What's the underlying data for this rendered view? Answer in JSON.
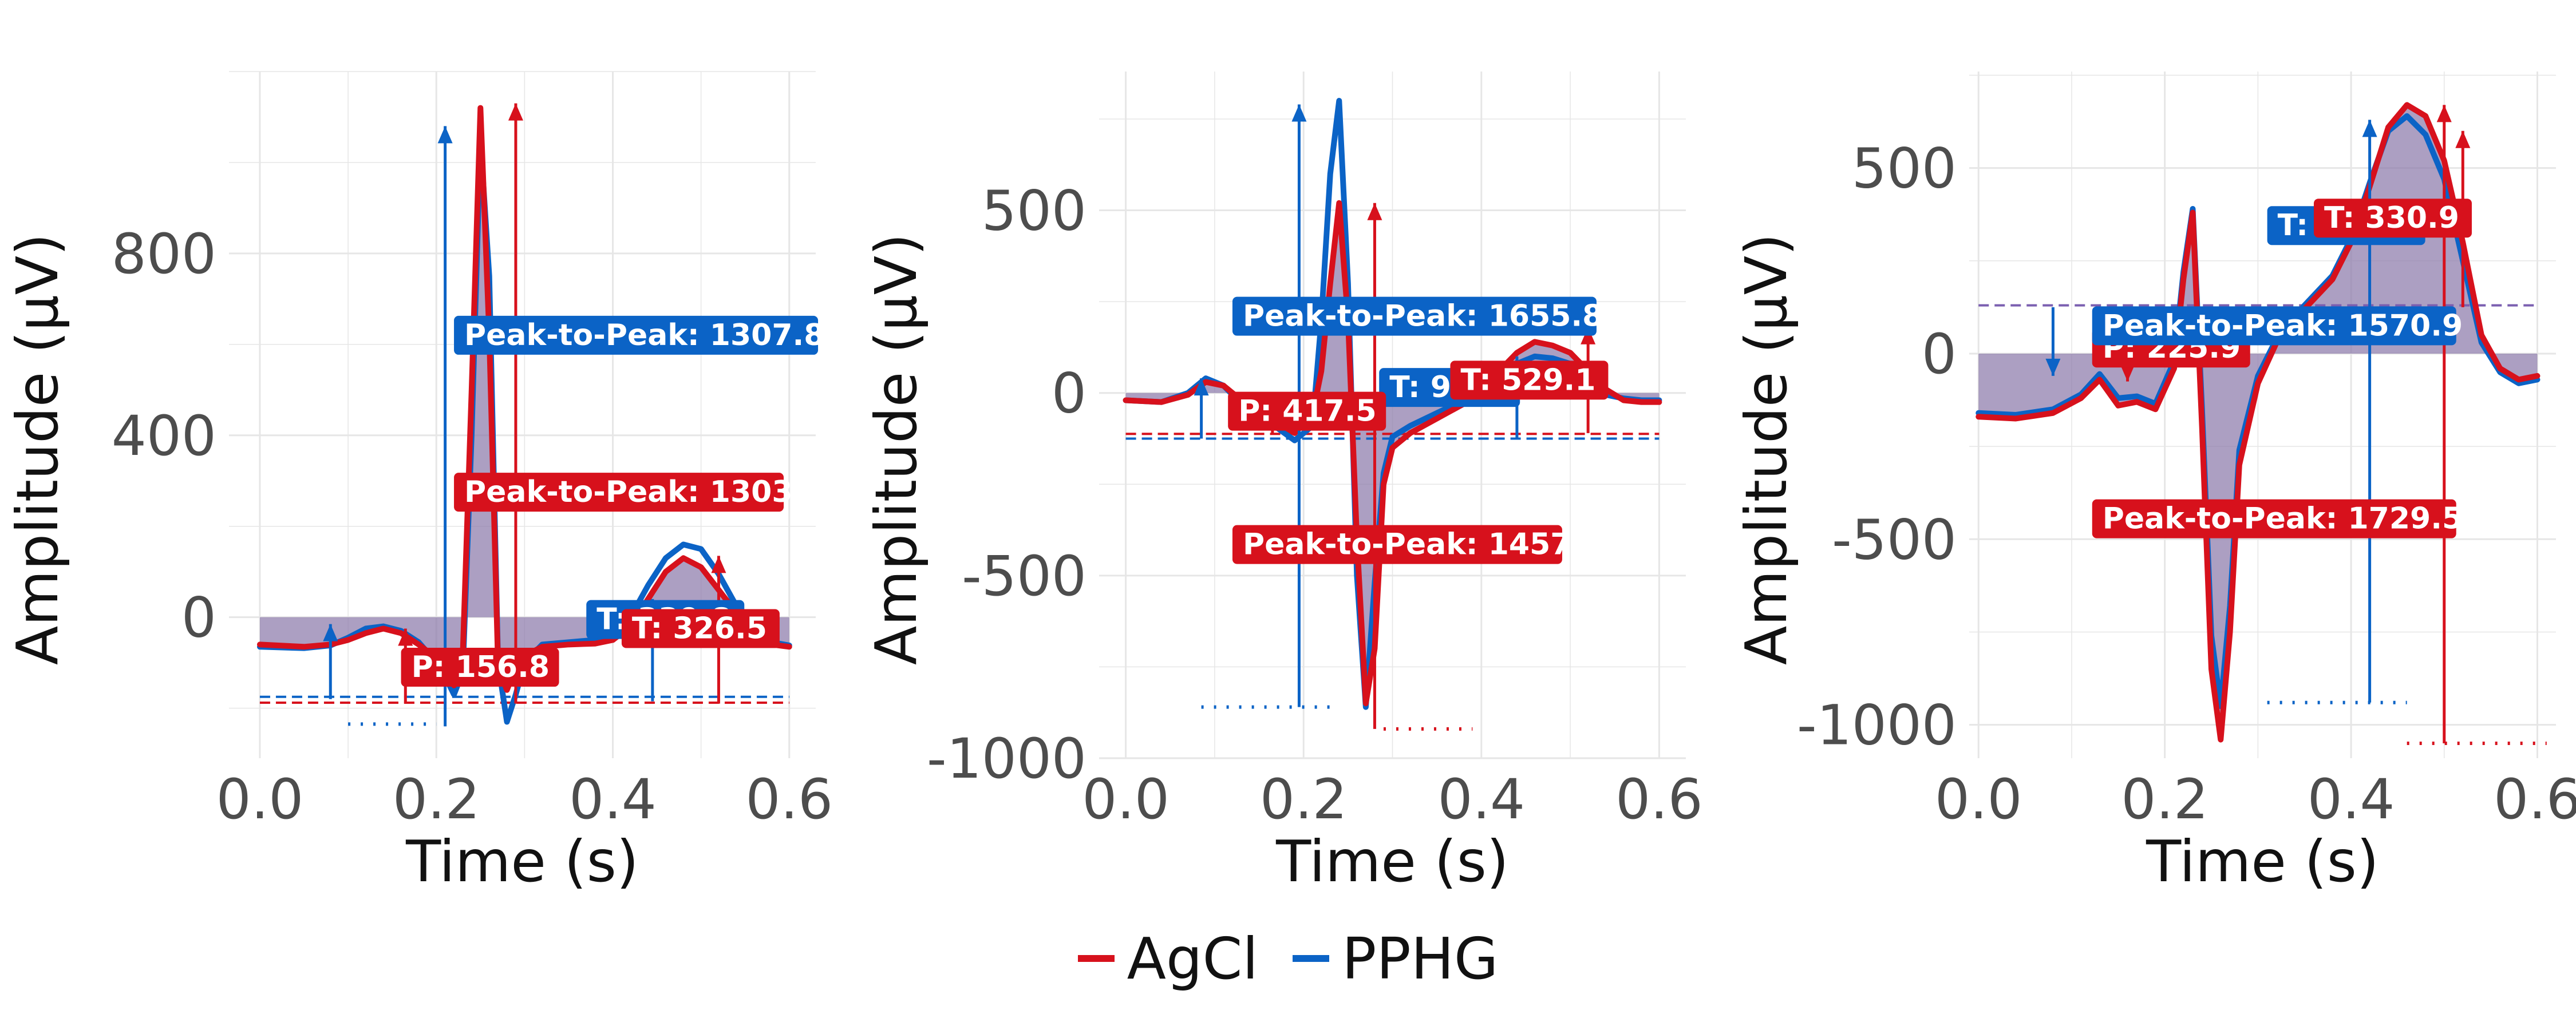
{
  "chart_data": [
    {
      "type": "line",
      "xlabel": "Time (s)",
      "ylabel": "Amplitude (µV)",
      "xlim": [
        -0.035,
        0.63
      ],
      "ylim": [
        -310,
        1200
      ],
      "xticks": [
        "0.0",
        "0.2",
        "0.4",
        "0.6"
      ],
      "yticks": [
        "0",
        "400",
        "800"
      ],
      "grid": true,
      "series": [
        {
          "name": "AgCl",
          "x": [
            0,
            0.05,
            0.08,
            0.1,
            0.12,
            0.14,
            0.16,
            0.18,
            0.2,
            0.21,
            0.22,
            0.23,
            0.24,
            0.25,
            0.26,
            0.27,
            0.28,
            0.29,
            0.3,
            0.32,
            0.35,
            0.38,
            0.4,
            0.42,
            0.44,
            0.46,
            0.48,
            0.5,
            0.52,
            0.54,
            0.56,
            0.58,
            0.6
          ],
          "y": [
            -60,
            -65,
            -60,
            -50,
            -35,
            -25,
            -35,
            -60,
            -90,
            -110,
            -150,
            -80,
            500,
            1120,
            620,
            -110,
            -160,
            -110,
            -85,
            -65,
            -60,
            -58,
            -50,
            -20,
            40,
            100,
            130,
            110,
            60,
            10,
            -40,
            -60,
            -65
          ]
        },
        {
          "name": "PPHG",
          "x": [
            0,
            0.05,
            0.08,
            0.1,
            0.12,
            0.14,
            0.16,
            0.18,
            0.2,
            0.21,
            0.22,
            0.23,
            0.24,
            0.25,
            0.26,
            0.27,
            0.28,
            0.29,
            0.3,
            0.32,
            0.35,
            0.38,
            0.4,
            0.42,
            0.44,
            0.46,
            0.48,
            0.5,
            0.52,
            0.54,
            0.56,
            0.58,
            0.6
          ],
          "y": [
            -65,
            -68,
            -62,
            -45,
            -25,
            -20,
            -30,
            -55,
            -100,
            -130,
            -170,
            -120,
            400,
            1050,
            750,
            -100,
            -230,
            -170,
            -100,
            -60,
            -55,
            -50,
            -40,
            0,
            70,
            130,
            160,
            150,
            95,
            25,
            -30,
            -55,
            -62
          ]
        }
      ],
      "vlines": [
        {
          "series": "PPHG",
          "x": 0.21,
          "y_from": -240,
          "y_to": 1080
        },
        {
          "series": "AgCl",
          "x": 0.29,
          "y_from": -190,
          "y_to": 1130
        },
        {
          "series": "PPHG",
          "x": 0.08,
          "y_from": -180,
          "y_to": -15
        },
        {
          "series": "AgCl",
          "x": 0.165,
          "y_from": -190,
          "y_to": -25
        },
        {
          "series": "PPHG",
          "x": 0.445,
          "y_from": -185,
          "y_to": 40
        },
        {
          "series": "AgCl",
          "x": 0.52,
          "y_from": -190,
          "y_to": 135
        }
      ],
      "baselines": [
        {
          "series": "PPHG",
          "y": -175,
          "style": "dashed"
        },
        {
          "series": "AgCl",
          "y": -188,
          "style": "dashed"
        },
        {
          "series": "PPHG",
          "y": -235,
          "x_from": 0.1,
          "x_to": 0.2,
          "style": "dotted"
        }
      ],
      "annotations": [
        {
          "text": "Peak-to-Peak: 1307.8",
          "series": "PPHG",
          "x": 0.22,
          "y": 620
        },
        {
          "text": "Peak-to-Peak: 1303",
          "series": "AgCl",
          "x": 0.22,
          "y": 275
        },
        {
          "text": "T: 339.8",
          "series": "PPHG",
          "x": 0.37,
          "y": -5
        },
        {
          "text": "T: 326.5",
          "series": "AgCl",
          "x": 0.41,
          "y": -25
        },
        {
          "text": "P: 156.8",
          "series": "AgCl",
          "x": 0.16,
          "y": -110
        }
      ]
    },
    {
      "type": "line",
      "xlabel": "Time (s)",
      "ylabel": "Amplitude (µV)",
      "xlim": [
        -0.03,
        0.63
      ],
      "ylim": [
        -1000,
        880
      ],
      "xticks": [
        "0.0",
        "0.2",
        "0.4",
        "0.6"
      ],
      "yticks": [
        "500",
        "0",
        "-500",
        "-1000"
      ],
      "grid": true,
      "series": [
        {
          "name": "AgCl",
          "x": [
            0,
            0.04,
            0.07,
            0.09,
            0.11,
            0.13,
            0.15,
            0.17,
            0.19,
            0.21,
            0.22,
            0.23,
            0.24,
            0.25,
            0.26,
            0.27,
            0.28,
            0.29,
            0.3,
            0.32,
            0.35,
            0.38,
            0.4,
            0.42,
            0.44,
            0.46,
            0.48,
            0.5,
            0.52,
            0.54,
            0.56,
            0.58,
            0.6
          ],
          "y": [
            -20,
            -25,
            -5,
            30,
            20,
            -20,
            -55,
            -80,
            -110,
            -60,
            60,
            300,
            520,
            200,
            -400,
            -850,
            -700,
            -250,
            -150,
            -110,
            -70,
            -30,
            0,
            60,
            110,
            140,
            130,
            110,
            60,
            10,
            -20,
            -25,
            -25
          ]
        },
        {
          "name": "PPHG",
          "x": [
            0,
            0.04,
            0.07,
            0.09,
            0.11,
            0.13,
            0.15,
            0.17,
            0.19,
            0.21,
            0.22,
            0.23,
            0.24,
            0.25,
            0.26,
            0.27,
            0.28,
            0.29,
            0.3,
            0.32,
            0.35,
            0.38,
            0.4,
            0.42,
            0.44,
            0.46,
            0.48,
            0.5,
            0.52,
            0.54,
            0.56,
            0.58,
            0.6
          ],
          "y": [
            -20,
            -25,
            0,
            40,
            20,
            -30,
            -70,
            -95,
            -130,
            -90,
            200,
            600,
            800,
            300,
            -500,
            -860,
            -520,
            -220,
            -120,
            -90,
            -55,
            -20,
            10,
            50,
            80,
            100,
            95,
            80,
            30,
            -5,
            -15,
            -20,
            -20
          ]
        }
      ],
      "vlines": [
        {
          "series": "PPHG",
          "x": 0.195,
          "y_from": -860,
          "y_to": 790
        },
        {
          "series": "AgCl",
          "x": 0.28,
          "y_from": -920,
          "y_to": 520
        },
        {
          "series": "PPHG",
          "x": 0.085,
          "y_from": -125,
          "y_to": 40
        },
        {
          "series": "AgCl",
          "x": 0.165,
          "y_from": -110,
          "y_to": -20
        },
        {
          "series": "PPHG",
          "x": 0.44,
          "y_from": -125,
          "y_to": 100
        },
        {
          "series": "AgCl",
          "x": 0.52,
          "y_from": -110,
          "y_to": 180
        }
      ],
      "baselines": [
        {
          "series": "AgCl",
          "y": -112,
          "style": "dashed"
        },
        {
          "series": "PPHG",
          "y": -125,
          "style": "dashed"
        },
        {
          "series": "PPHG",
          "y": -860,
          "x_from": 0.085,
          "x_to": 0.23,
          "style": "dotted"
        },
        {
          "series": "AgCl",
          "y": -920,
          "x_from": 0.29,
          "x_to": 0.39,
          "style": "dotted"
        }
      ],
      "annotations": [
        {
          "text": "Peak-to-Peak: 1655.8",
          "series": "PPHG",
          "x": 0.12,
          "y": 210
        },
        {
          "text": "T: 97.2",
          "series": "PPHG",
          "x": 0.285,
          "y": 15
        },
        {
          "text": "T: 529.1",
          "series": "AgCl",
          "x": 0.365,
          "y": 35
        },
        {
          "text": "P: 417.5",
          "series": "AgCl",
          "x": 0.115,
          "y": -50
        },
        {
          "text": "Peak-to-Peak: 1457",
          "series": "AgCl",
          "x": 0.12,
          "y": -415
        }
      ]
    },
    {
      "type": "line",
      "xlabel": "Time (s)",
      "ylabel": "Amplitude (µV)",
      "xlim": [
        -0.01,
        0.62
      ],
      "ylim": [
        -1090,
        760
      ],
      "xticks": [
        "0.0",
        "0.2",
        "0.4",
        "0.6"
      ],
      "yticks": [
        "500",
        "0",
        "-500",
        "-1000"
      ],
      "grid": true,
      "series": [
        {
          "name": "AgCl",
          "x": [
            0,
            0.04,
            0.08,
            0.11,
            0.13,
            0.15,
            0.17,
            0.19,
            0.21,
            0.22,
            0.23,
            0.24,
            0.25,
            0.26,
            0.27,
            0.28,
            0.3,
            0.32,
            0.35,
            0.38,
            0.4,
            0.42,
            0.44,
            0.46,
            0.48,
            0.5,
            0.52,
            0.54,
            0.56,
            0.58,
            0.6
          ],
          "y": [
            -170,
            -175,
            -160,
            -120,
            -70,
            -140,
            -130,
            -150,
            -40,
            200,
            380,
            -200,
            -850,
            -1040,
            -750,
            -300,
            -80,
            30,
            120,
            200,
            300,
            450,
            610,
            670,
            640,
            520,
            300,
            50,
            -40,
            -70,
            -60
          ]
        },
        {
          "name": "PPHG",
          "x": [
            0,
            0.04,
            0.08,
            0.11,
            0.13,
            0.15,
            0.17,
            0.19,
            0.21,
            0.22,
            0.23,
            0.24,
            0.25,
            0.26,
            0.27,
            0.28,
            0.3,
            0.32,
            0.35,
            0.38,
            0.4,
            0.42,
            0.44,
            0.46,
            0.48,
            0.5,
            0.52,
            0.54,
            0.56,
            0.58,
            0.6
          ],
          "y": [
            -160,
            -165,
            -150,
            -110,
            -55,
            -120,
            -115,
            -135,
            -20,
            220,
            390,
            -150,
            -760,
            -950,
            -680,
            -260,
            -60,
            40,
            130,
            210,
            310,
            460,
            600,
            640,
            590,
            470,
            250,
            30,
            -50,
            -80,
            -70
          ]
        }
      ],
      "vlines": [
        {
          "series": "PPHG",
          "x": 0.42,
          "y_from": -940,
          "y_to": 630
        },
        {
          "series": "AgCl",
          "x": 0.5,
          "y_from": -1050,
          "y_to": 670
        },
        {
          "series": "PPHG",
          "x": 0.08,
          "y_from": 125,
          "y_to": -60
        },
        {
          "series": "AgCl",
          "x": 0.16,
          "y_from": 125,
          "y_to": -75
        },
        {
          "series": "AgCl",
          "x": 0.52,
          "y_from": 125,
          "y_to": 600
        }
      ],
      "baselines": [
        {
          "series": "PPHG",
          "y": 130,
          "style": "dashed",
          "color": "#7b5fb0"
        },
        {
          "series": "PPHG",
          "y": -940,
          "x_from": 0.31,
          "x_to": 0.46,
          "style": "dotted"
        },
        {
          "series": "AgCl",
          "y": -1050,
          "x_from": 0.46,
          "x_to": 0.61,
          "style": "dotted"
        }
      ],
      "annotations": [
        {
          "text": "T: 309.2",
          "series": "PPHG",
          "x": 0.31,
          "y": 345
        },
        {
          "text": "T: 330.9",
          "series": "AgCl",
          "x": 0.36,
          "y": 365
        },
        {
          "text": "P: 225.9",
          "series": "AgCl",
          "x": 0.122,
          "y": 15
        },
        {
          "text": "Peak-to-Peak: 1570.9",
          "series": "PPHG",
          "x": 0.122,
          "y": 75
        },
        {
          "text": "Peak-to-Peak: 1729.5",
          "series": "AgCl",
          "x": 0.122,
          "y": -445
        }
      ]
    }
  ],
  "legend": [
    {
      "label": "AgCl",
      "color": "#d7111c"
    },
    {
      "label": "PPHG",
      "color": "#0b63c6"
    }
  ],
  "colors": {
    "AgCl": "#d7111c",
    "PPHG": "#0b63c6",
    "fill": "#8c7aab",
    "grid": "#e6e6e6",
    "tick_text": "#4d4d4d"
  }
}
